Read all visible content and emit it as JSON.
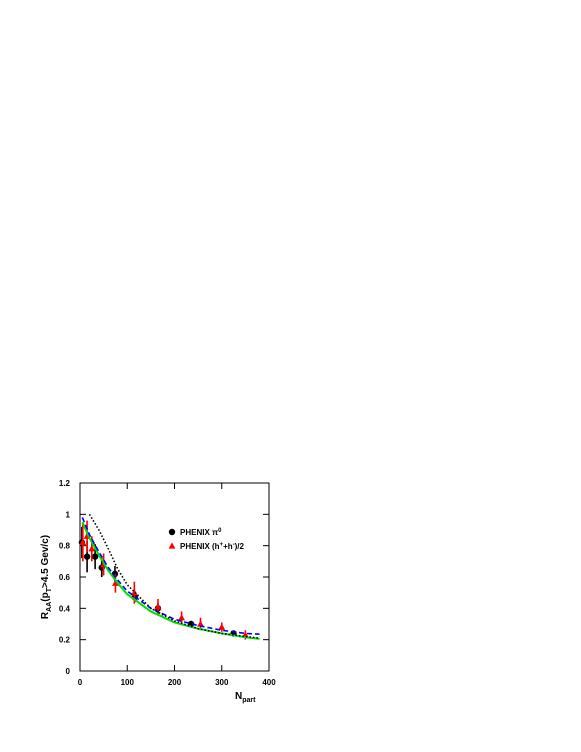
{
  "chart_data": {
    "type": "scatter",
    "ylabel": [
      "R",
      "AA",
      "(p",
      "T",
      ">4.5 Gev/c)"
    ],
    "xlabel": [
      "N",
      "part"
    ],
    "xlim": [
      0,
      400
    ],
    "xticks": [
      0,
      100,
      200,
      300,
      400
    ],
    "ylim": [
      0,
      1.2
    ],
    "yticks": [
      0,
      0.2,
      0.4,
      0.6,
      0.8,
      1,
      1.2
    ],
    "series": [
      {
        "name": [
          "PHENIX π",
          "0"
        ],
        "color": "#000000",
        "marker": "circle",
        "x": [
          4,
          15,
          32,
          46,
          74,
          116,
          165,
          235,
          325
        ],
        "values": [
          0.82,
          0.73,
          0.73,
          0.66,
          0.62,
          0.47,
          0.4,
          0.3,
          0.24
        ],
        "errors": [
          0.1,
          0.1,
          0.08,
          0.06,
          0.05,
          0.03,
          0.03,
          0.02,
          0.01
        ]
      },
      {
        "name": [
          "PHENIX (h",
          "+",
          "+h",
          "-",
          ")/2"
        ],
        "color": "#ff0000",
        "marker": "triangle",
        "x": [
          6,
          15,
          25,
          50,
          75,
          115,
          165,
          215,
          255,
          300,
          350
        ],
        "values": [
          0.82,
          0.86,
          0.78,
          0.68,
          0.56,
          0.5,
          0.41,
          0.34,
          0.3,
          0.28,
          0.23
        ],
        "errors": [
          0.12,
          0.1,
          0.08,
          0.07,
          0.06,
          0.07,
          0.05,
          0.04,
          0.04,
          0.03,
          0.03
        ]
      },
      {
        "color": "#00dd00",
        "style": "solid",
        "x": [
          5,
          20,
          40,
          60,
          80,
          100,
          150,
          200,
          250,
          300,
          350,
          380
        ],
        "values": [
          0.95,
          0.85,
          0.74,
          0.64,
          0.56,
          0.49,
          0.38,
          0.31,
          0.27,
          0.24,
          0.215,
          0.205
        ]
      },
      {
        "color": "#0000ff",
        "style": "dashed",
        "x": [
          5,
          20,
          40,
          60,
          80,
          100,
          150,
          200,
          250,
          300,
          350,
          380
        ],
        "values": [
          0.98,
          0.87,
          0.76,
          0.66,
          0.58,
          0.51,
          0.4,
          0.33,
          0.29,
          0.26,
          0.24,
          0.235
        ]
      },
      {
        "color": "#000000",
        "style": "dotted",
        "x": [
          20,
          40,
          60,
          80,
          100,
          150,
          200,
          250,
          300,
          350,
          380
        ],
        "values": [
          1.0,
          0.9,
          0.78,
          0.65,
          0.55,
          0.4,
          0.32,
          0.27,
          0.24,
          0.22,
          0.21
        ]
      }
    ]
  }
}
